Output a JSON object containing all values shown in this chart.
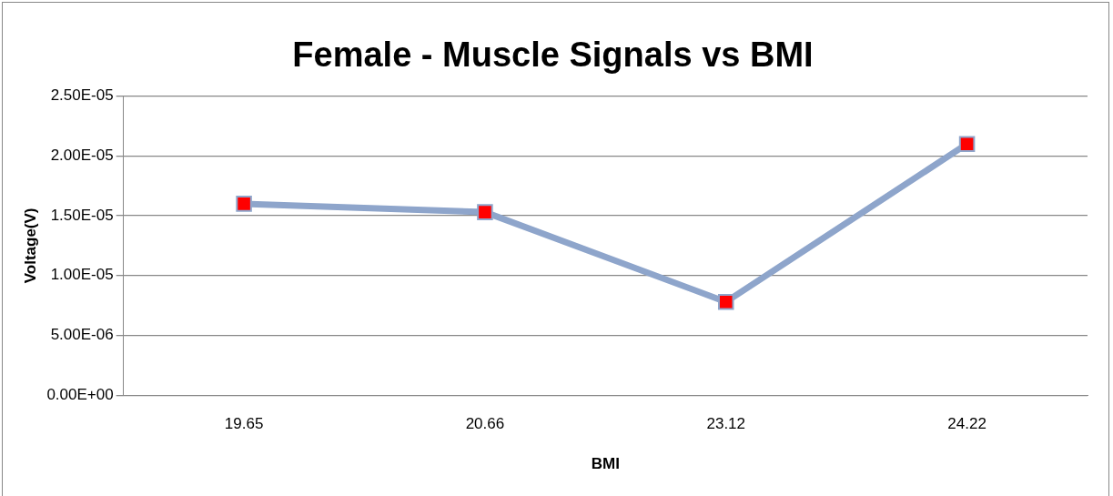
{
  "chart_data": {
    "type": "line",
    "title": "Female - Muscle Signals vs BMI",
    "xlabel": "BMI",
    "ylabel": "Voltage(V)",
    "categories": [
      "19.65",
      "20.66",
      "23.12",
      "24.22"
    ],
    "series": [
      {
        "color": "#8ea5cb",
        "colors": [
          "#ff0000",
          "#ff0000",
          "#ff0000",
          "#ff0000"
        ],
        "values": [
          1.6e-05,
          1.53e-05,
          7.8e-06,
          2.1e-05
        ]
      }
    ],
    "ylim": [
      0,
      2.5e-05
    ],
    "yticks": [
      {
        "value": 0,
        "label": "0.00E+00"
      },
      {
        "value": 5e-06,
        "label": "5.00E-06"
      },
      {
        "value": 1e-05,
        "label": "1.00E-05"
      },
      {
        "value": 1.5e-05,
        "label": "1.50E-05"
      },
      {
        "value": 2e-05,
        "label": "2.00E-05"
      },
      {
        "value": 2.5e-05,
        "label": "2.50E-05"
      }
    ],
    "grid": "y",
    "legend": false,
    "marker": "square",
    "line_style": "solid"
  }
}
